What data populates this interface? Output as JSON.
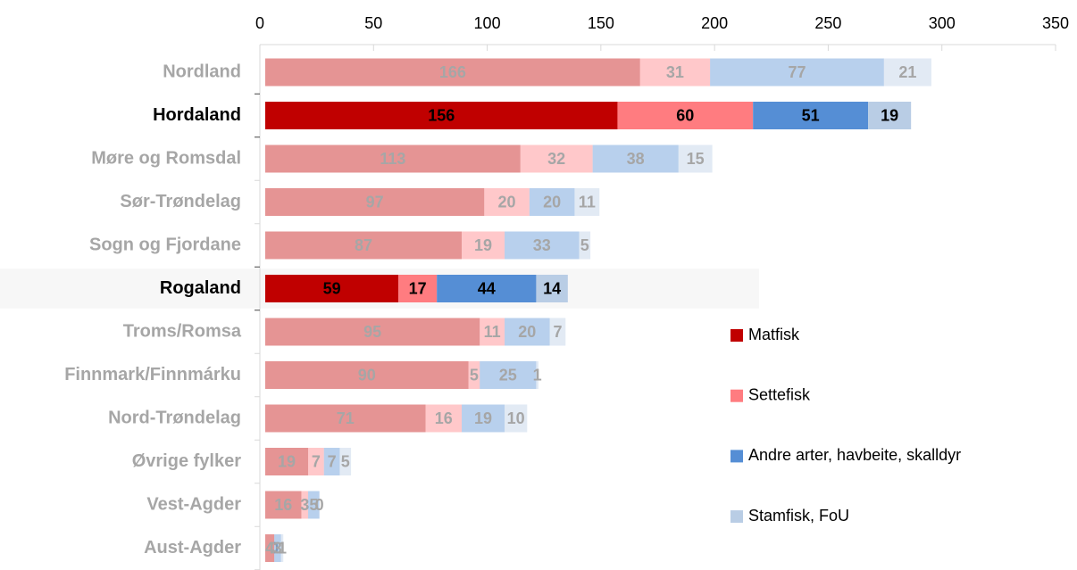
{
  "chart_data": {
    "type": "stacked-barh",
    "categories": [
      "Nordland",
      "Hordaland",
      "Møre og Romsdal",
      "Sør-Trøndelag",
      "Sogn og Fjordane",
      "Rogaland",
      "Troms/Romsa",
      "Finnmark/Finnmárku",
      "Nord-Trøndelag",
      "Øvrige fylker",
      "Vest-Agder",
      "Aust-Agder"
    ],
    "highlight": [
      1,
      5
    ],
    "series": [
      {
        "name": "Matfisk",
        "color": "#c00000",
        "values": [
          166,
          156,
          113,
          97,
          87,
          59,
          95,
          90,
          71,
          19,
          16,
          4
        ]
      },
      {
        "name": "Settefisk",
        "color": "#ff7c80",
        "values": [
          31,
          60,
          32,
          20,
          19,
          17,
          11,
          5,
          16,
          7,
          3,
          0
        ]
      },
      {
        "name": "Andre arter, havbeite, skalldyr",
        "color": "#558ed5",
        "values": [
          77,
          51,
          38,
          20,
          33,
          44,
          20,
          25,
          19,
          7,
          5,
          3
        ]
      },
      {
        "name": "Stamfisk, FoU",
        "color": "#b9cde5",
        "values": [
          21,
          19,
          15,
          11,
          5,
          14,
          7,
          1,
          10,
          5,
          0,
          1
        ]
      }
    ],
    "xlim": [
      0,
      350
    ],
    "xticks": [
      0,
      50,
      100,
      150,
      200,
      250,
      300,
      350
    ],
    "legend": "right"
  }
}
